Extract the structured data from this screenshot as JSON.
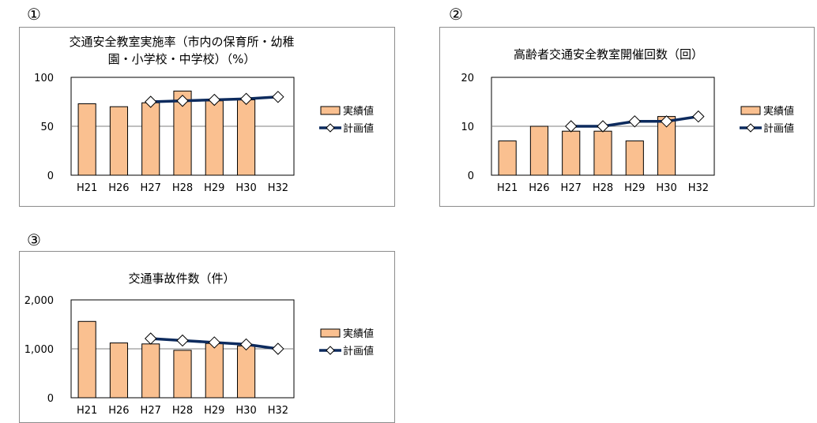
{
  "panels": [
    {
      "number": "①"
    },
    {
      "number": "②"
    },
    {
      "number": "③"
    }
  ],
  "chart_data": [
    {
      "type": "bar",
      "title": "交通安全教室実施率（市内の保育所・幼稚\n園・小学校・中学校）（%）",
      "categories": [
        "H21",
        "H26",
        "H27",
        "H28",
        "H29",
        "H30",
        "H32"
      ],
      "y_tick_labels": [
        "100",
        "50",
        "0"
      ],
      "ylim": [
        0,
        100
      ],
      "series": [
        {
          "name": "実績値",
          "kind": "bar",
          "color": "#fac090",
          "values": [
            73,
            70,
            74,
            86,
            76,
            77,
            null
          ]
        },
        {
          "name": "計画値",
          "kind": "line",
          "color": "#0d2b5e",
          "values": [
            null,
            null,
            75,
            76,
            77,
            78,
            80
          ]
        }
      ],
      "legend_position": "right"
    },
    {
      "type": "bar",
      "title": "高齢者交通安全教室開催回数（回）",
      "categories": [
        "H21",
        "H26",
        "H27",
        "H28",
        "H29",
        "H30",
        "H32"
      ],
      "y_tick_labels": [
        "20",
        "10",
        "0"
      ],
      "ylim": [
        0,
        20
      ],
      "series": [
        {
          "name": "実績値",
          "kind": "bar",
          "color": "#fac090",
          "values": [
            7,
            10,
            9,
            9,
            7,
            12,
            null
          ]
        },
        {
          "name": "計画値",
          "kind": "line",
          "color": "#0d2b5e",
          "values": [
            null,
            null,
            10,
            10,
            11,
            11,
            12
          ]
        }
      ],
      "legend_position": "right"
    },
    {
      "type": "bar",
      "title": "交通事故件数（件）",
      "categories": [
        "H21",
        "H26",
        "H27",
        "H28",
        "H29",
        "H30",
        "H32"
      ],
      "y_tick_labels": [
        "2,000",
        "1,000",
        "0"
      ],
      "ylim": [
        0,
        2000
      ],
      "series": [
        {
          "name": "実績値",
          "kind": "bar",
          "color": "#fac090",
          "values": [
            1560,
            1120,
            1100,
            970,
            1110,
            1060,
            null
          ]
        },
        {
          "name": "計画値",
          "kind": "line",
          "color": "#0d2b5e",
          "values": [
            null,
            null,
            1210,
            1170,
            1130,
            1090,
            1000
          ]
        }
      ],
      "legend_position": "right"
    }
  ]
}
